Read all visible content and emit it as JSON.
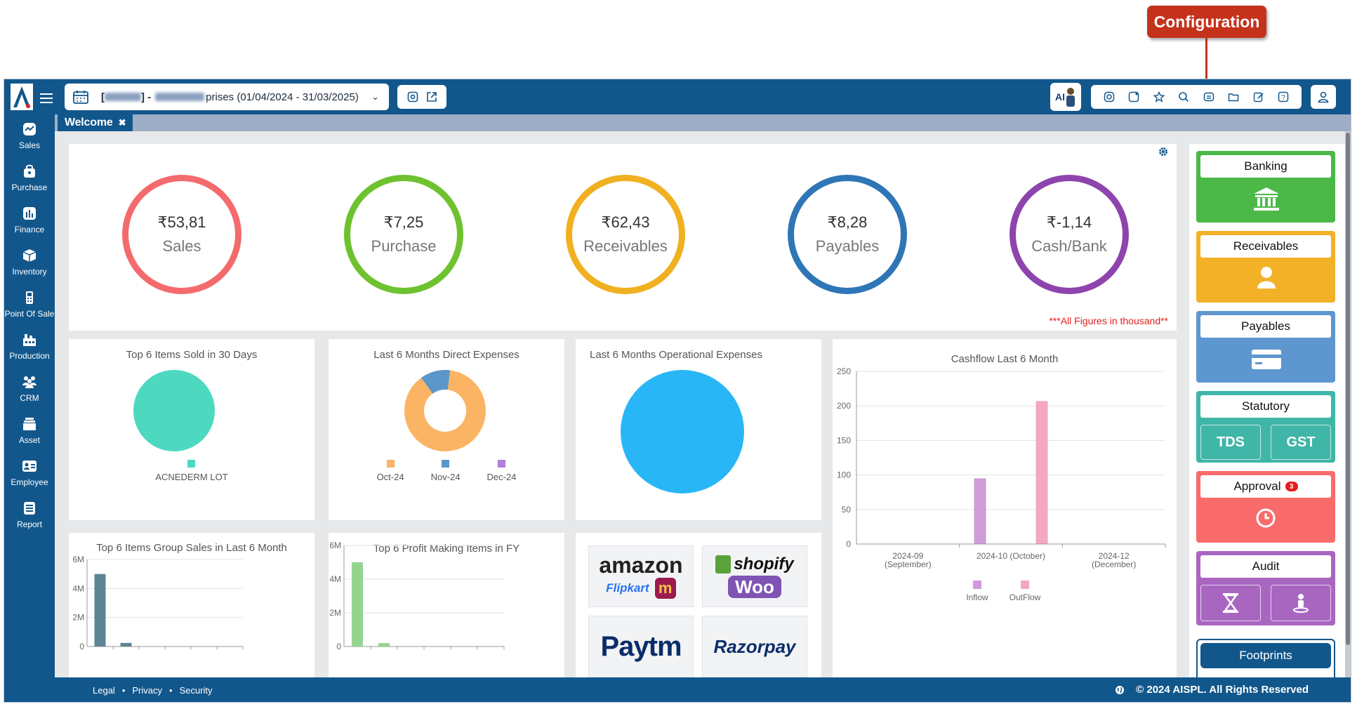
{
  "callout": {
    "label": "Configuration"
  },
  "topbar": {
    "company_mid": "prises (01/04/2024 - 31/03/2025)",
    "ai_badge": "AI",
    "toolbar_icons": [
      "instagram-icon",
      "refresh-icon",
      "star-icon",
      "search-icon",
      "configuration-icon",
      "folder-icon",
      "edit-icon",
      "help-icon"
    ]
  },
  "sidebar": {
    "items": [
      {
        "label": "Sales",
        "icon": "sales-chart-icon"
      },
      {
        "label": "Purchase",
        "icon": "purchase-bag-icon"
      },
      {
        "label": "Finance",
        "icon": "finance-bar-icon"
      },
      {
        "label": "Inventory",
        "icon": "inventory-box-icon"
      },
      {
        "label": "Point Of Sale",
        "icon": "pos-terminal-icon"
      },
      {
        "label": "Production",
        "icon": "production-factory-icon"
      },
      {
        "label": "CRM",
        "icon": "crm-people-icon"
      },
      {
        "label": "Asset",
        "icon": "asset-stack-icon"
      },
      {
        "label": "Employee",
        "icon": "employee-card-icon"
      },
      {
        "label": "Report",
        "icon": "report-doc-icon"
      }
    ]
  },
  "tabs": [
    {
      "label": "Welcome"
    }
  ],
  "kpis": {
    "items": [
      {
        "value": "₹53,81",
        "label": "Sales",
        "color": "#f46b6d"
      },
      {
        "value": "₹7,25",
        "label": "Purchase",
        "color": "#6ec22f"
      },
      {
        "value": "₹62,43",
        "label": "Receivables",
        "color": "#f0b020"
      },
      {
        "value": "₹8,28",
        "label": "Payables",
        "color": "#2e76b6"
      },
      {
        "value": "₹-1,14",
        "label": "Cash/Bank",
        "color": "#8e44ad"
      }
    ],
    "note": "***All Figures in thousand**"
  },
  "cards": {
    "top_items": {
      "title": "Top 6 Items Sold in 30 Days",
      "legend": "ACNEDERM LOT"
    },
    "direct_exp": {
      "title": "Last 6 Months Direct Expenses",
      "legend": [
        "Oct-24",
        "Nov-24",
        "Dec-24"
      ]
    },
    "op_exp": {
      "title": "Last 6 Months Operational Expenses"
    },
    "cashflow": {
      "title": "Cashflow Last 6 Month"
    },
    "group_sales": {
      "title": "Top 6 Items Group Sales in Last 6 Month"
    },
    "profit_items": {
      "title": "Top 6 Profit Making Items in FY"
    }
  },
  "marketplaces": [
    "amazon",
    "Flipkart",
    "m",
    "shopify",
    "Woo",
    "Paytm",
    "Razorpay"
  ],
  "right": {
    "banking": "Banking",
    "receivables": "Receivables",
    "payables": "Payables",
    "statutory": "Statutory",
    "tds": "TDS",
    "gst": "GST",
    "approval": "Approval",
    "approval_count": "3",
    "audit": "Audit",
    "footprints": "Footprints"
  },
  "footer": {
    "legal": "Legal",
    "privacy": "Privacy",
    "security": "Security",
    "sep": "•",
    "copyright": "© 2024 AISPL. All Rights Reserved"
  },
  "chart_data": [
    {
      "type": "pie",
      "title": "Top 6 Items Sold in 30 Days",
      "categories": [
        "ACNEDERM LOT"
      ],
      "values": [
        100
      ],
      "colors": [
        "#4dd9c0"
      ]
    },
    {
      "type": "pie",
      "title": "Last 6 Months Direct Expenses",
      "categories": [
        "Oct-24",
        "Nov-24",
        "Dec-24"
      ],
      "values": [
        88,
        12,
        0
      ],
      "colors": [
        "#fbb463",
        "#5b97c8",
        "#b07fd6"
      ]
    },
    {
      "type": "pie",
      "title": "Last 6 Months Operational Expenses",
      "categories": [
        ""
      ],
      "values": [
        100
      ],
      "colors": [
        "#29b6f6"
      ]
    },
    {
      "type": "bar",
      "title": "Cashflow Last 6 Month",
      "categories": [
        "2024-09 (September)",
        "2024-10 (October)",
        "2024-12 (December)"
      ],
      "series": [
        {
          "name": "Inflow",
          "values": [
            0,
            95,
            0
          ],
          "color": "#cf9bd8"
        },
        {
          "name": "OutFlow",
          "values": [
            0,
            207,
            0
          ],
          "color": "#f3a7c4"
        }
      ],
      "ylim": [
        0,
        250
      ],
      "yticks": [
        0,
        50,
        100,
        150,
        200,
        250
      ],
      "grid": true
    },
    {
      "type": "bar",
      "title": "Top 6 Items Group Sales in Last 6 Month",
      "categories": [
        "",
        "",
        "",
        "",
        "",
        ""
      ],
      "values": [
        5.0,
        0.25,
        0,
        0,
        0,
        0
      ],
      "yticks": [
        "0",
        "2M",
        "4M",
        "6M"
      ],
      "ylim": [
        0,
        6
      ],
      "color": "#5e8593"
    },
    {
      "type": "bar",
      "title": "Top 6 Profit Making Items in FY",
      "categories": [
        "",
        "",
        "",
        "",
        "",
        ""
      ],
      "values": [
        5.0,
        0.2,
        0,
        0,
        0,
        0
      ],
      "yticks": [
        "0",
        "2M",
        "4M",
        "6M"
      ],
      "ylim": [
        0,
        6
      ],
      "color": "#93d58e"
    }
  ]
}
